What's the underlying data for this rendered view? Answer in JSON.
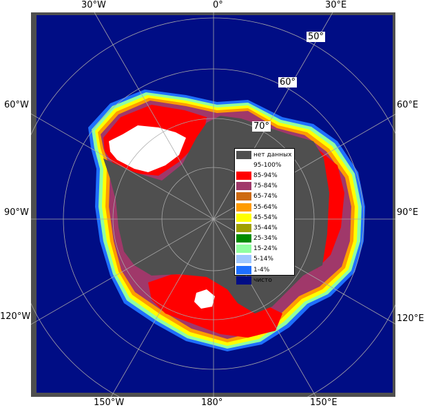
{
  "map": {
    "longitude_labels": {
      "w30": "30°W",
      "zero": "0°",
      "e30": "30°E",
      "w60": "60°W",
      "e60": "60°E",
      "w90": "90°W",
      "e90": "90°E",
      "w120": "120°W",
      "e120": "120°E",
      "w150": "150°W",
      "lon180": "180°",
      "e150": "150°E"
    },
    "latitude_labels": {
      "lat50": "50°",
      "lat60": "60°",
      "lat70": "70°"
    },
    "colors": {
      "ocean": "#000d85",
      "land": "#4f4f4f",
      "frame": "#4f4f4f",
      "ice_95_100": "#ffffff",
      "ice_85_94": "#ff0000",
      "ice_75_84": "#a0386a",
      "ice_65_74": "#cd6a10",
      "ice_55_64": "#ff9c00",
      "ice_45_54": "#ffff00",
      "ice_15_24": "#90ffa0",
      "ice_5_14": "#a0c8ff",
      "ice_1_4": "#1e6fff"
    }
  },
  "legend": {
    "items": [
      {
        "label": "нет данных",
        "color": "#4f4f4f"
      },
      {
        "label": "95-100%",
        "color": "#ffffff"
      },
      {
        "label": "85-94%",
        "color": "#ff0000"
      },
      {
        "label": "75-84%",
        "color": "#a0386a"
      },
      {
        "label": "65-74%",
        "color": "#cd6a10"
      },
      {
        "label": "55-64%",
        "color": "#ff9c00"
      },
      {
        "label": "45-54%",
        "color": "#ffff00"
      },
      {
        "label": "35-44%",
        "color": "#a0a000"
      },
      {
        "label": "25-34%",
        "color": "#008c00"
      },
      {
        "label": "15-24%",
        "color": "#90ffa0"
      },
      {
        "label": "5-14%",
        "color": "#a0c8ff"
      },
      {
        "label": "1-4%",
        "color": "#1e6fff"
      },
      {
        "label": "чисто",
        "color": "#000d85"
      }
    ]
  }
}
